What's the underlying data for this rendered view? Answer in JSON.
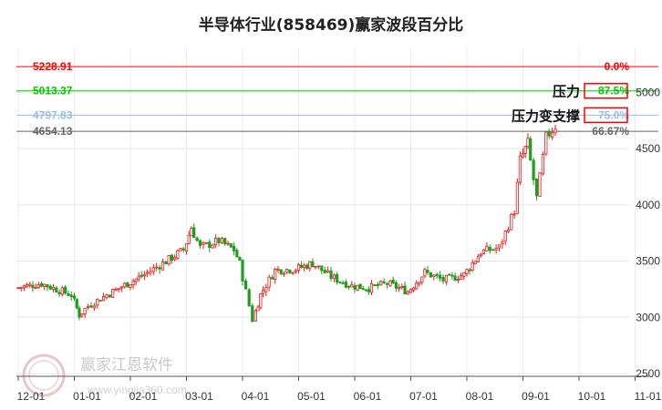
{
  "chart_data": {
    "type": "candlestick",
    "title": "半导体行业(858469)赢家波段百分比",
    "ylim": [
      2500,
      5400
    ],
    "yticks": [
      2500,
      3000,
      3500,
      4000,
      4500,
      5000
    ],
    "xticks": [
      "12-01",
      "01-01",
      "02-01",
      "03-01",
      "04-01",
      "05-01",
      "06-01",
      "07-01",
      "08-01",
      "09-01",
      "10-01",
      "11-01"
    ],
    "levels": [
      {
        "value": 5228.91,
        "label": "5228.91",
        "pct": "0.0%",
        "color": "#ff0000"
      },
      {
        "value": 5013.37,
        "label": "5013.37",
        "pct": "87.5%",
        "color": "#00cc00"
      },
      {
        "value": 4797.83,
        "label": "4797.83",
        "pct": "75.0%",
        "color": "#99bbee"
      },
      {
        "value": 4654.13,
        "label": "4654.13",
        "pct": "66.67%",
        "color": "#666666"
      }
    ],
    "annotations": [
      {
        "text": "压力",
        "level": 5013.37
      },
      {
        "text": "压力变支撑",
        "level": 4797.83
      }
    ],
    "up_color": "#e81a1a",
    "down_color": "#1f9d1f",
    "series": [
      {
        "date": "12-01",
        "close": 3260
      },
      {
        "date": "12-15",
        "close": 3300
      },
      {
        "date": "01-01",
        "close": 3200
      },
      {
        "date": "01-05",
        "close": 3020
      },
      {
        "date": "01-10",
        "close": 3100
      },
      {
        "date": "01-20",
        "close": 3200
      },
      {
        "date": "02-01",
        "close": 3300
      },
      {
        "date": "02-10",
        "close": 3380
      },
      {
        "date": "02-20",
        "close": 3480
      },
      {
        "date": "03-01",
        "close": 3600
      },
      {
        "date": "03-05",
        "close": 3800
      },
      {
        "date": "03-10",
        "close": 3620
      },
      {
        "date": "03-20",
        "close": 3680
      },
      {
        "date": "03-28",
        "close": 3600
      },
      {
        "date": "04-01",
        "close": 3480
      },
      {
        "date": "04-08",
        "close": 2980
      },
      {
        "date": "04-12",
        "close": 3200
      },
      {
        "date": "04-20",
        "close": 3420
      },
      {
        "date": "05-01",
        "close": 3430
      },
      {
        "date": "05-10",
        "close": 3480
      },
      {
        "date": "05-20",
        "close": 3360
      },
      {
        "date": "06-01",
        "close": 3280
      },
      {
        "date": "06-10",
        "close": 3260
      },
      {
        "date": "06-20",
        "close": 3300
      },
      {
        "date": "07-01",
        "close": 3230
      },
      {
        "date": "07-10",
        "close": 3400
      },
      {
        "date": "07-20",
        "close": 3330
      },
      {
        "date": "08-01",
        "close": 3380
      },
      {
        "date": "08-10",
        "close": 3580
      },
      {
        "date": "08-20",
        "close": 3620
      },
      {
        "date": "08-28",
        "close": 3950
      },
      {
        "date": "09-01",
        "close": 4400
      },
      {
        "date": "09-05",
        "close": 4550
      },
      {
        "date": "09-10",
        "close": 4060
      },
      {
        "date": "09-15",
        "close": 4600
      },
      {
        "date": "09-20",
        "close": 4700
      }
    ]
  },
  "watermark": {
    "text": "赢家江恩软件",
    "sub": "www.yingjia360.com",
    "logo": "赢家财富网"
  }
}
